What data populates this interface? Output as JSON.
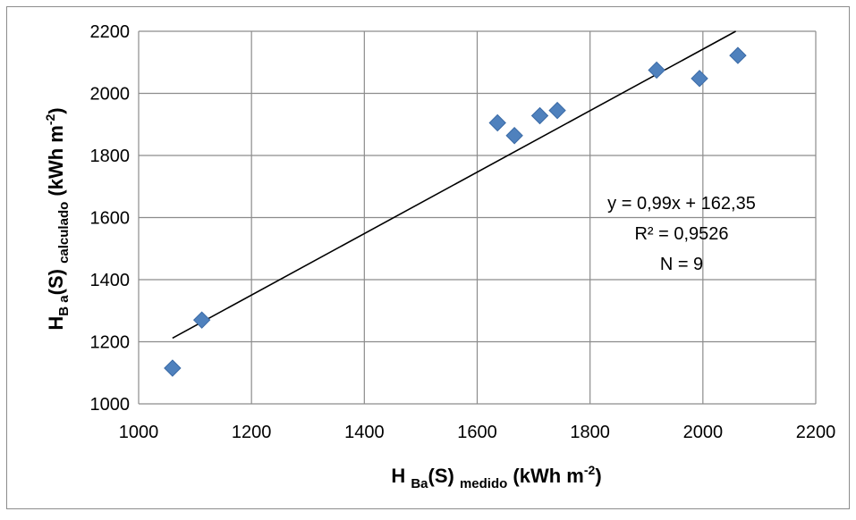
{
  "chart_data": {
    "type": "scatter",
    "xlim": [
      1000,
      2200
    ],
    "ylim": [
      1000,
      2200
    ],
    "x_ticks": [
      1000,
      1200,
      1400,
      1600,
      1800,
      2000,
      2200
    ],
    "y_ticks": [
      1000,
      1200,
      1400,
      1600,
      1800,
      2000,
      2200
    ],
    "grid": true,
    "marker": "diamond",
    "colors": {
      "marker": "#4f81bd",
      "marker_edge": "#3a6aa6",
      "grid": "#8c8c8c",
      "trend": "#000000",
      "frame": "#8c8c8c"
    },
    "xlabel": {
      "main": "H ",
      "sub": "Ba",
      "main2": "(S) ",
      "sub2": "medido",
      "main3": " (kWh m",
      "sup": "-2",
      "end": ")"
    },
    "ylabel": {
      "main": "H",
      "sub": "B a",
      "main2": "(S) ",
      "sub2": "calculado",
      "main3": " (kWh m",
      "sup": "-2",
      "end": ")"
    },
    "series": [
      {
        "points": [
          {
            "x": 1060,
            "y": 1115
          },
          {
            "x": 1112,
            "y": 1270
          },
          {
            "x": 1636,
            "y": 1905
          },
          {
            "x": 1666,
            "y": 1864
          },
          {
            "x": 1711,
            "y": 1928
          },
          {
            "x": 1742,
            "y": 1945
          },
          {
            "x": 1918,
            "y": 2075
          },
          {
            "x": 1994,
            "y": 2048
          },
          {
            "x": 2062,
            "y": 2122
          }
        ]
      }
    ],
    "trendline": {
      "slope": 0.99,
      "intercept": 162.35,
      "x_start": 1060,
      "x_end": 2062
    },
    "annotations": [
      "y = 0,99x + 162,35",
      "R² = 0,9526",
      "N = 9"
    ]
  }
}
